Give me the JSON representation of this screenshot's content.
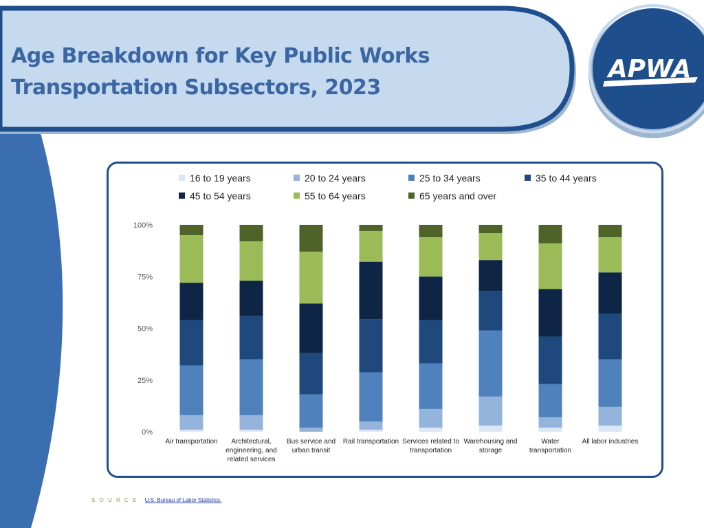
{
  "header": {
    "title_line1": "Age Breakdown for Key Public Works",
    "title_line2": "Transportation Subsectors, 2023",
    "logo_text": "APWA"
  },
  "source": {
    "label": "S O U R C E",
    "link_text": "U.S. Bureau of Labor Statistics."
  },
  "colors": {
    "header_band": "#c5d9ef",
    "header_border": "#1f4e8c",
    "side_arc": "#3a6eb0",
    "logo_circle": "#1f4e8c",
    "text_title": "#3a66a3"
  },
  "chart_data": {
    "type": "bar",
    "stacked": true,
    "percent": true,
    "categories": [
      "Air transportation",
      "Architectural, engineering, and related services",
      "Bus service and urban transit",
      "Rail transportation",
      "Services related to transportation",
      "Warehousing and storage",
      "Water transportation",
      "All labor industries"
    ],
    "category_lines": [
      [
        "Air transportation"
      ],
      [
        "Architectural,",
        "engineering, and",
        "related services"
      ],
      [
        "Bus service and",
        "urban transit"
      ],
      [
        "Rail transportation"
      ],
      [
        "Services related to",
        "transportation"
      ],
      [
        "Warehousing and",
        "storage"
      ],
      [
        "Water",
        "transportation"
      ],
      [
        "All labor industries"
      ]
    ],
    "series": [
      {
        "name": "16 to 19 years",
        "color": "#dde6f4",
        "values": [
          1,
          1,
          0,
          1,
          2,
          3,
          2,
          3
        ]
      },
      {
        "name": "20 to 24 years",
        "color": "#94b4dc",
        "values": [
          7,
          7,
          2,
          4,
          9,
          14,
          5,
          9
        ]
      },
      {
        "name": "25 to 34 years",
        "color": "#4f81bd",
        "values": [
          24,
          27,
          16,
          24,
          22,
          32,
          16,
          23
        ]
      },
      {
        "name": "35 to 44 years",
        "color": "#1f497d",
        "values": [
          22,
          21,
          20,
          26,
          21,
          19,
          23,
          22
        ]
      },
      {
        "name": "45 to 54 years",
        "color": "#0e2545",
        "values": [
          18,
          17,
          24,
          28,
          21,
          15,
          23,
          20
        ]
      },
      {
        "name": "55 to 64 years",
        "color": "#9bbb59",
        "values": [
          23,
          19,
          25,
          15,
          19,
          13,
          22,
          17
        ]
      },
      {
        "name": "65 years and over",
        "color": "#4f6228",
        "values": [
          5,
          8,
          13,
          3,
          6,
          4,
          9,
          6
        ]
      }
    ],
    "yticks": [
      "0%",
      "25%",
      "50%",
      "75%",
      "100%"
    ],
    "ylim": [
      0,
      100
    ],
    "legend_position": "top",
    "grid": false
  }
}
